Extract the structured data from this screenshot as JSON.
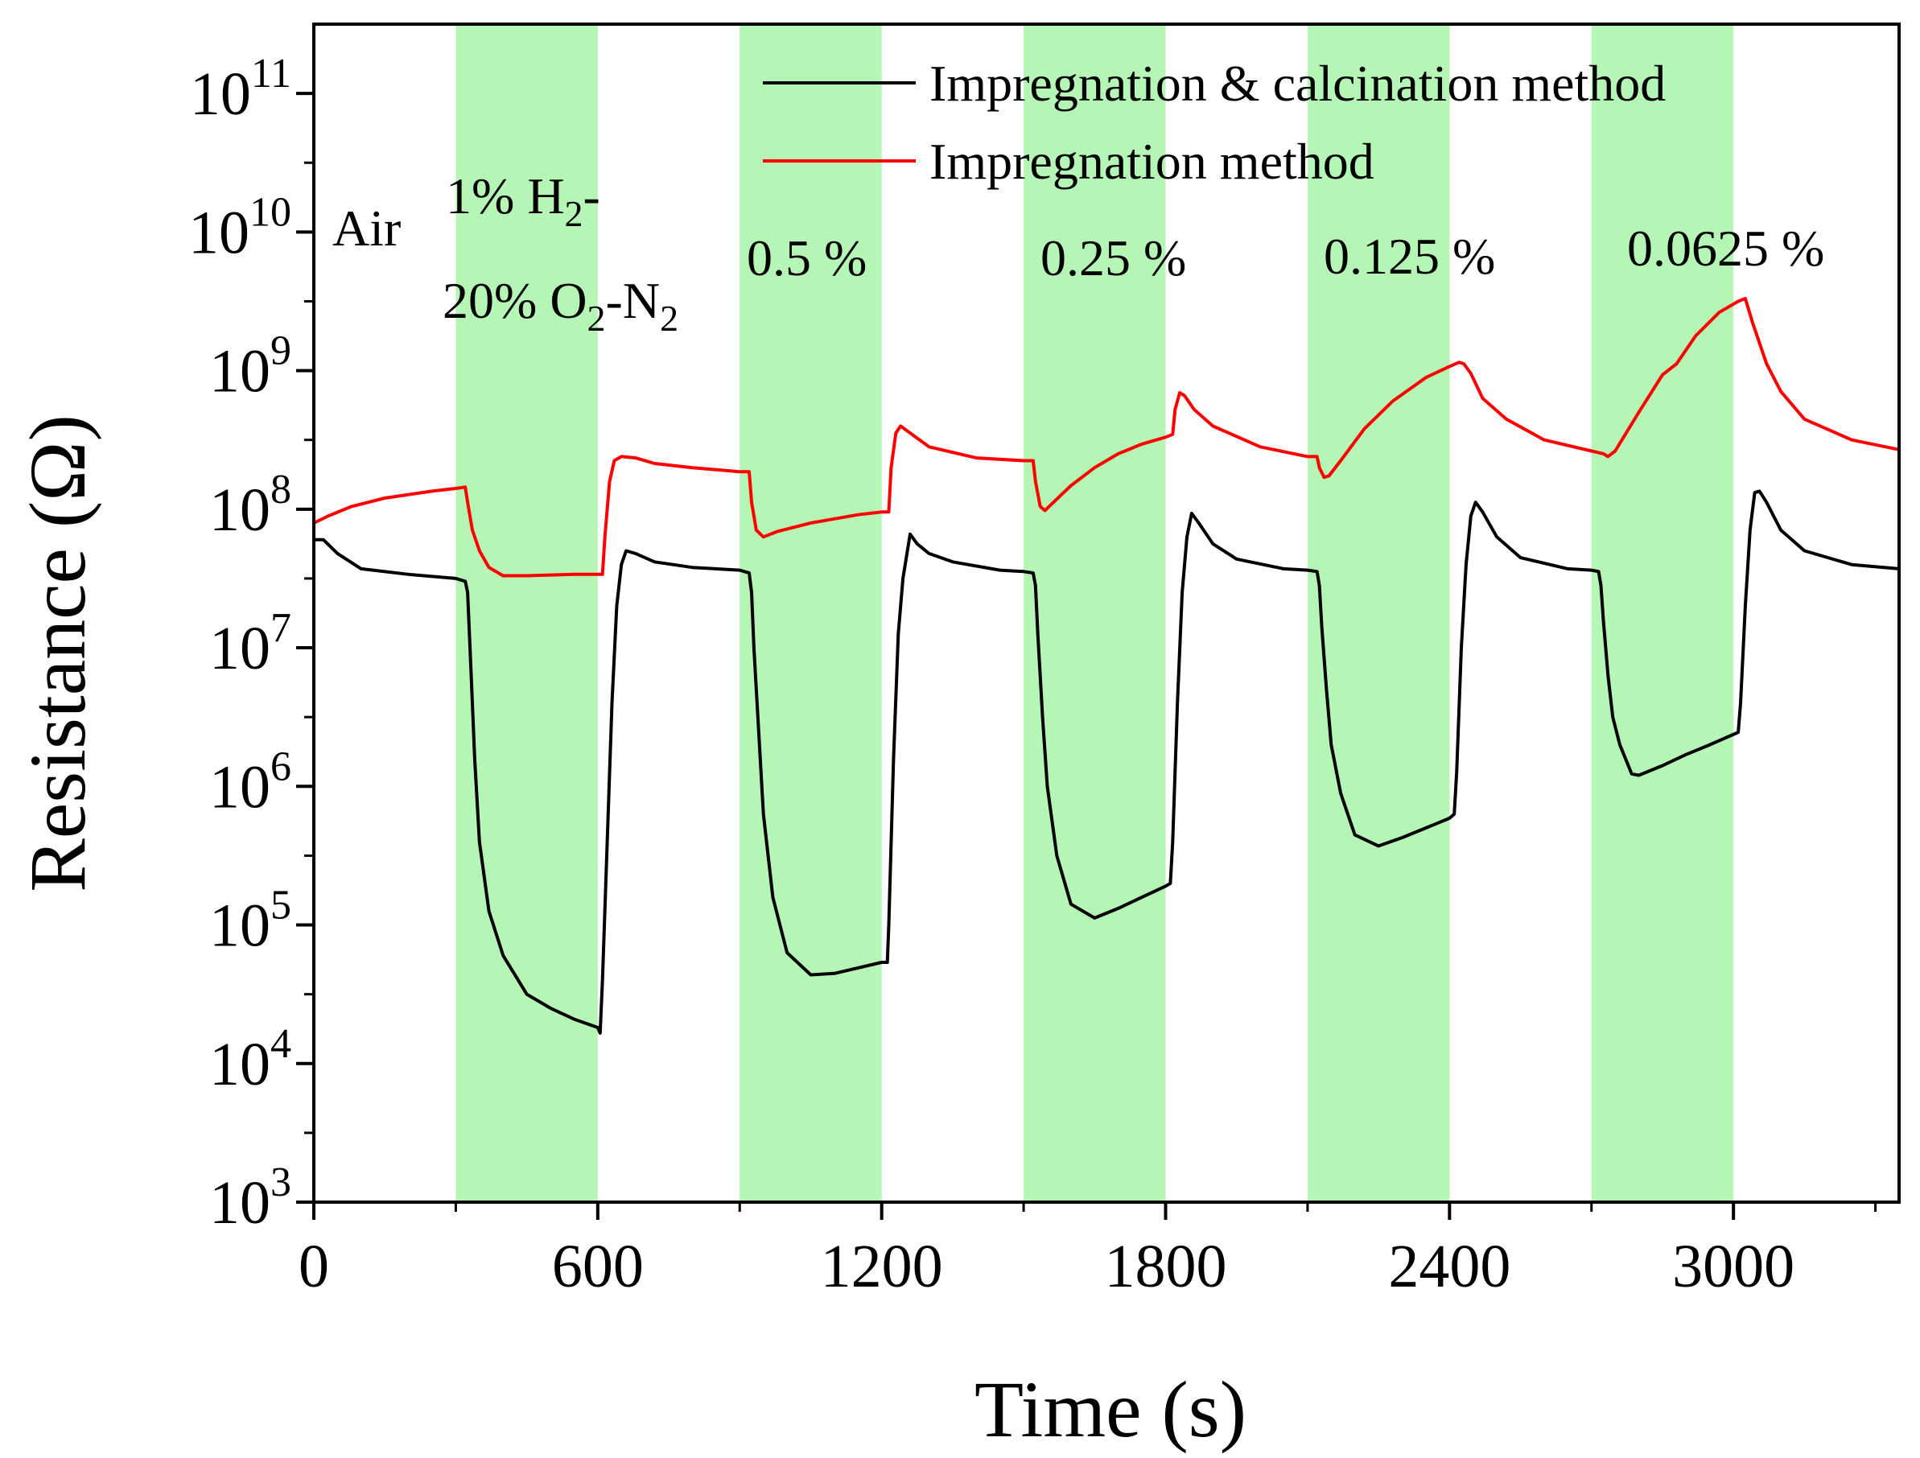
{
  "chart_data": {
    "type": "line",
    "title": "",
    "xlabel": "Time (s)",
    "ylabel": "Resistance (Ω)",
    "xlim": [
      0,
      3350
    ],
    "ylim_log10": [
      3,
      11.5
    ],
    "y_scale": "log",
    "x_ticks": [
      {
        "value": 0,
        "label": "0"
      },
      {
        "value": 600,
        "label": "600"
      },
      {
        "value": 1200,
        "label": "1200"
      },
      {
        "value": 1800,
        "label": "1800"
      },
      {
        "value": 2400,
        "label": "2400"
      },
      {
        "value": 3000,
        "label": "3000"
      }
    ],
    "y_ticks": [
      {
        "exp": 3,
        "base": "10",
        "sup": "3"
      },
      {
        "exp": 4,
        "base": "10",
        "sup": "4"
      },
      {
        "exp": 5,
        "base": "10",
        "sup": "5"
      },
      {
        "exp": 6,
        "base": "10",
        "sup": "6"
      },
      {
        "exp": 7,
        "base": "10",
        "sup": "7"
      },
      {
        "exp": 8,
        "base": "10",
        "sup": "8"
      },
      {
        "exp": 9,
        "base": "10",
        "sup": "9"
      },
      {
        "exp": 10,
        "base": "10",
        "sup": "10"
      },
      {
        "exp": 11,
        "base": "10",
        "sup": "11"
      }
    ],
    "shaded_intervals": [
      {
        "start": 300,
        "end": 600,
        "color": "#b5f5b5"
      },
      {
        "start": 900,
        "end": 1200,
        "color": "#b5f5b5"
      },
      {
        "start": 1500,
        "end": 1800,
        "color": "#b5f5b5"
      },
      {
        "start": 2100,
        "end": 2400,
        "color": "#b5f5b5"
      },
      {
        "start": 2700,
        "end": 3000,
        "color": "#b5f5b5"
      }
    ],
    "annotations": {
      "air": "Air",
      "h2_line1_prefix": "1% H",
      "h2_line1_sub": "2",
      "h2_line1_suffix": "-",
      "h2_line2_prefix": "20% O",
      "h2_line2_sub1": "2",
      "h2_line2_mid": "-N",
      "h2_line2_sub2": "2",
      "c2": "0.5 %",
      "c3": "0.25 %",
      "c4": "0.125 %",
      "c5": "0.0625 %"
    },
    "series": [
      {
        "name": "Impregnation & calcination method",
        "color": "#000000",
        "points": [
          [
            0,
            7.78
          ],
          [
            20,
            7.78
          ],
          [
            50,
            7.68
          ],
          [
            100,
            7.57
          ],
          [
            200,
            7.53
          ],
          [
            300,
            7.5
          ],
          [
            320,
            7.48
          ],
          [
            325,
            7.4
          ],
          [
            330,
            7.0
          ],
          [
            340,
            6.2
          ],
          [
            350,
            5.6
          ],
          [
            370,
            5.1
          ],
          [
            400,
            4.78
          ],
          [
            450,
            4.5
          ],
          [
            500,
            4.4
          ],
          [
            550,
            4.32
          ],
          [
            600,
            4.26
          ],
          [
            605,
            4.22
          ],
          [
            610,
            4.6
          ],
          [
            620,
            5.6
          ],
          [
            630,
            6.6
          ],
          [
            640,
            7.3
          ],
          [
            650,
            7.6
          ],
          [
            660,
            7.7
          ],
          [
            680,
            7.68
          ],
          [
            720,
            7.62
          ],
          [
            800,
            7.58
          ],
          [
            900,
            7.56
          ],
          [
            920,
            7.54
          ],
          [
            925,
            7.4
          ],
          [
            930,
            7.0
          ],
          [
            940,
            6.4
          ],
          [
            950,
            5.8
          ],
          [
            970,
            5.2
          ],
          [
            1000,
            4.8
          ],
          [
            1050,
            4.64
          ],
          [
            1100,
            4.65
          ],
          [
            1150,
            4.69
          ],
          [
            1200,
            4.73
          ],
          [
            1212,
            4.73
          ],
          [
            1215,
            5.0
          ],
          [
            1225,
            6.2
          ],
          [
            1235,
            7.1
          ],
          [
            1245,
            7.5
          ],
          [
            1260,
            7.82
          ],
          [
            1275,
            7.75
          ],
          [
            1300,
            7.68
          ],
          [
            1350,
            7.62
          ],
          [
            1450,
            7.56
          ],
          [
            1500,
            7.55
          ],
          [
            1520,
            7.54
          ],
          [
            1525,
            7.45
          ],
          [
            1530,
            7.1
          ],
          [
            1540,
            6.5
          ],
          [
            1550,
            6.0
          ],
          [
            1570,
            5.5
          ],
          [
            1600,
            5.15
          ],
          [
            1650,
            5.05
          ],
          [
            1700,
            5.12
          ],
          [
            1750,
            5.2
          ],
          [
            1800,
            5.28
          ],
          [
            1810,
            5.3
          ],
          [
            1815,
            5.6
          ],
          [
            1825,
            6.6
          ],
          [
            1835,
            7.4
          ],
          [
            1845,
            7.8
          ],
          [
            1855,
            7.97
          ],
          [
            1870,
            7.9
          ],
          [
            1900,
            7.75
          ],
          [
            1950,
            7.64
          ],
          [
            2050,
            7.57
          ],
          [
            2100,
            7.56
          ],
          [
            2120,
            7.55
          ],
          [
            2125,
            7.45
          ],
          [
            2130,
            7.15
          ],
          [
            2140,
            6.7
          ],
          [
            2150,
            6.3
          ],
          [
            2170,
            5.95
          ],
          [
            2200,
            5.65
          ],
          [
            2250,
            5.57
          ],
          [
            2300,
            5.63
          ],
          [
            2350,
            5.7
          ],
          [
            2400,
            5.77
          ],
          [
            2410,
            5.8
          ],
          [
            2415,
            6.1
          ],
          [
            2425,
            7.0
          ],
          [
            2435,
            7.6
          ],
          [
            2445,
            7.95
          ],
          [
            2455,
            8.05
          ],
          [
            2470,
            7.98
          ],
          [
            2500,
            7.8
          ],
          [
            2550,
            7.65
          ],
          [
            2650,
            7.57
          ],
          [
            2700,
            7.56
          ],
          [
            2715,
            7.55
          ],
          [
            2720,
            7.45
          ],
          [
            2725,
            7.2
          ],
          [
            2735,
            6.8
          ],
          [
            2745,
            6.5
          ],
          [
            2760,
            6.3
          ],
          [
            2785,
            6.09
          ],
          [
            2800,
            6.08
          ],
          [
            2850,
            6.15
          ],
          [
            2900,
            6.23
          ],
          [
            2950,
            6.3
          ],
          [
            3010,
            6.39
          ],
          [
            3015,
            6.6
          ],
          [
            3025,
            7.3
          ],
          [
            3035,
            7.85
          ],
          [
            3045,
            8.12
          ],
          [
            3055,
            8.13
          ],
          [
            3070,
            8.05
          ],
          [
            3100,
            7.85
          ],
          [
            3150,
            7.7
          ],
          [
            3250,
            7.6
          ],
          [
            3350,
            7.57
          ]
        ]
      },
      {
        "name": "Impregnation method",
        "color": "#ff0000",
        "points": [
          [
            0,
            7.9
          ],
          [
            30,
            7.95
          ],
          [
            80,
            8.02
          ],
          [
            150,
            8.08
          ],
          [
            250,
            8.13
          ],
          [
            300,
            8.15
          ],
          [
            320,
            8.16
          ],
          [
            325,
            8.05
          ],
          [
            335,
            7.85
          ],
          [
            350,
            7.7
          ],
          [
            370,
            7.58
          ],
          [
            400,
            7.52
          ],
          [
            450,
            7.52
          ],
          [
            550,
            7.53
          ],
          [
            600,
            7.53
          ],
          [
            610,
            7.53
          ],
          [
            615,
            7.8
          ],
          [
            625,
            8.2
          ],
          [
            635,
            8.35
          ],
          [
            650,
            8.38
          ],
          [
            680,
            8.37
          ],
          [
            720,
            8.33
          ],
          [
            800,
            8.3
          ],
          [
            900,
            8.27
          ],
          [
            920,
            8.27
          ],
          [
            925,
            8.05
          ],
          [
            935,
            7.85
          ],
          [
            950,
            7.8
          ],
          [
            980,
            7.84
          ],
          [
            1050,
            7.9
          ],
          [
            1150,
            7.96
          ],
          [
            1200,
            7.98
          ],
          [
            1215,
            7.98
          ],
          [
            1220,
            8.3
          ],
          [
            1230,
            8.55
          ],
          [
            1240,
            8.6
          ],
          [
            1260,
            8.55
          ],
          [
            1300,
            8.45
          ],
          [
            1400,
            8.37
          ],
          [
            1500,
            8.35
          ],
          [
            1520,
            8.35
          ],
          [
            1525,
            8.2
          ],
          [
            1535,
            8.02
          ],
          [
            1545,
            7.99
          ],
          [
            1560,
            8.04
          ],
          [
            1600,
            8.17
          ],
          [
            1650,
            8.3
          ],
          [
            1700,
            8.4
          ],
          [
            1750,
            8.47
          ],
          [
            1800,
            8.52
          ],
          [
            1815,
            8.54
          ],
          [
            1820,
            8.72
          ],
          [
            1830,
            8.84
          ],
          [
            1840,
            8.82
          ],
          [
            1860,
            8.72
          ],
          [
            1900,
            8.6
          ],
          [
            2000,
            8.45
          ],
          [
            2100,
            8.38
          ],
          [
            2120,
            8.38
          ],
          [
            2125,
            8.3
          ],
          [
            2135,
            8.23
          ],
          [
            2145,
            8.24
          ],
          [
            2170,
            8.35
          ],
          [
            2220,
            8.58
          ],
          [
            2280,
            8.78
          ],
          [
            2350,
            8.95
          ],
          [
            2400,
            9.03
          ],
          [
            2420,
            9.06
          ],
          [
            2430,
            9.05
          ],
          [
            2445,
            8.98
          ],
          [
            2470,
            8.8
          ],
          [
            2520,
            8.65
          ],
          [
            2600,
            8.5
          ],
          [
            2700,
            8.42
          ],
          [
            2725,
            8.4
          ],
          [
            2735,
            8.38
          ],
          [
            2750,
            8.42
          ],
          [
            2800,
            8.7
          ],
          [
            2850,
            8.97
          ],
          [
            2880,
            9.05
          ],
          [
            2920,
            9.25
          ],
          [
            2970,
            9.42
          ],
          [
            3010,
            9.5
          ],
          [
            3025,
            9.52
          ],
          [
            3040,
            9.35
          ],
          [
            3070,
            9.05
          ],
          [
            3100,
            8.85
          ],
          [
            3150,
            8.65
          ],
          [
            3250,
            8.5
          ],
          [
            3350,
            8.43
          ]
        ]
      }
    ]
  }
}
